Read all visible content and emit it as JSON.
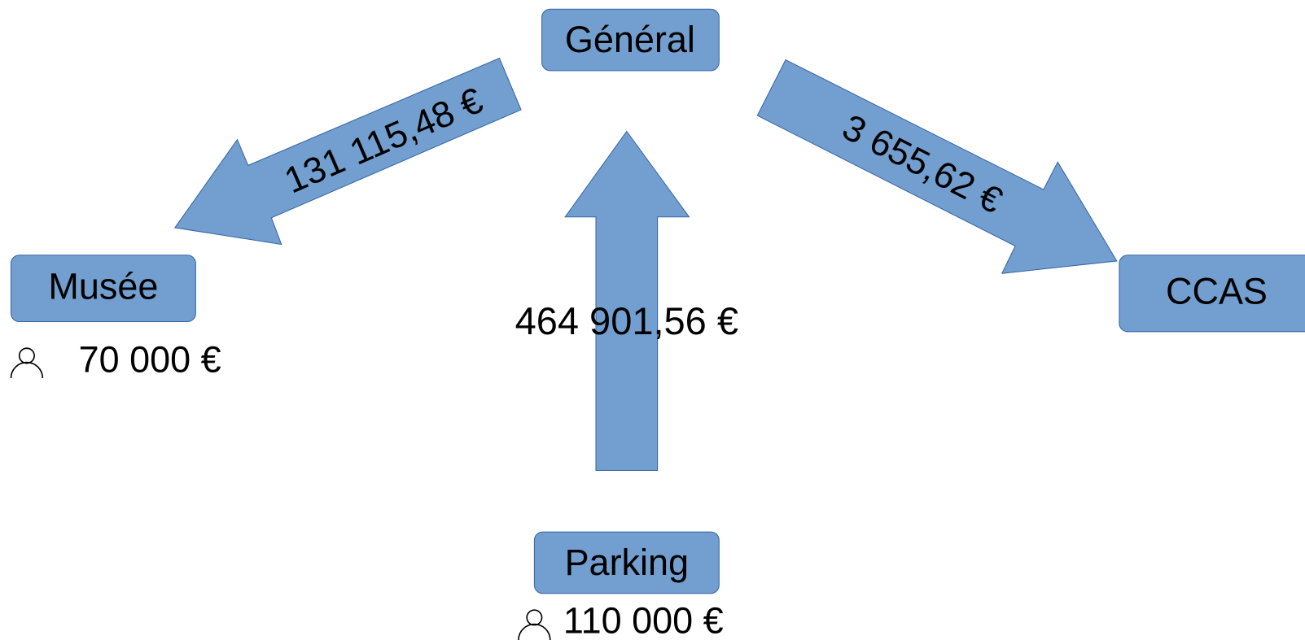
{
  "nodes": [
    {
      "label": "Général"
    },
    {
      "label": "Musée",
      "staff": "70 000 €"
    },
    {
      "label": "CCAS"
    },
    {
      "label": "Parking",
      "staff": "110 000 €"
    }
  ],
  "flows": [
    {
      "label": "131 115,48 €"
    },
    {
      "label": "464 901,56 €"
    },
    {
      "label": "3 655,62 €"
    }
  ]
}
